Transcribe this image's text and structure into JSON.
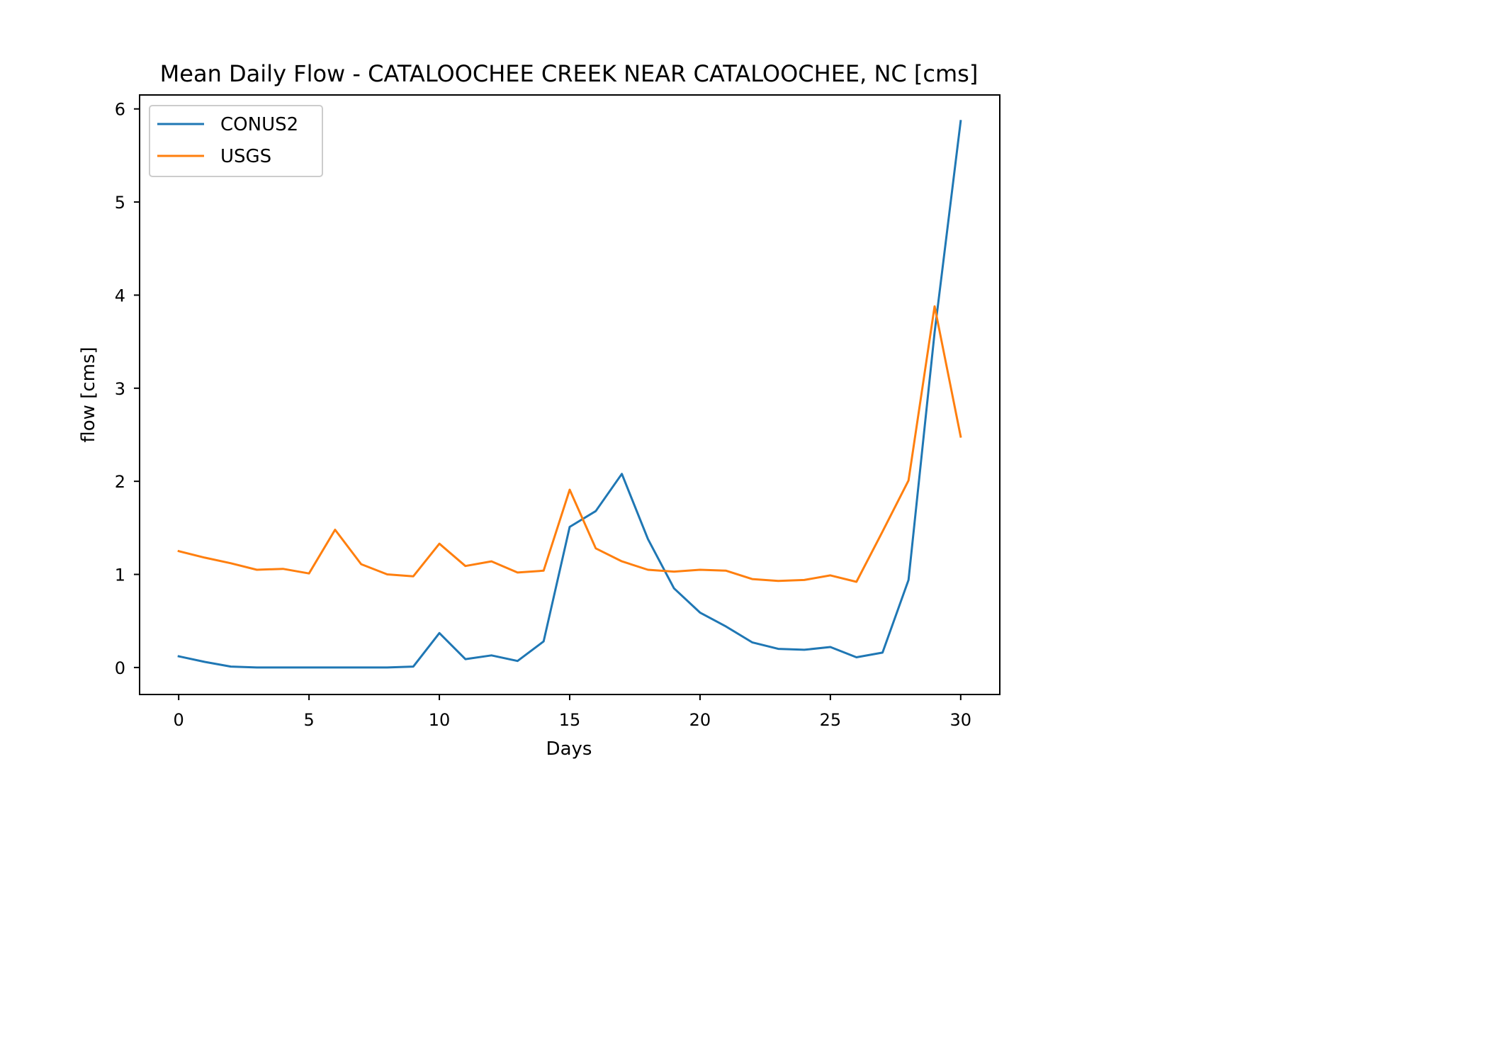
{
  "chart_data": {
    "type": "line",
    "title": "Mean Daily Flow - CATALOOCHEE CREEK NEAR CATALOOCHEE, NC [cms]",
    "xlabel": "Days",
    "ylabel": "flow [cms]",
    "xlim": [
      -1.5,
      31.5
    ],
    "ylim": [
      -0.29,
      6.15
    ],
    "xticks": [
      0,
      5,
      10,
      15,
      20,
      25,
      30
    ],
    "yticks": [
      0,
      1,
      2,
      3,
      4,
      5,
      6
    ],
    "grid": false,
    "legend_position": "upper-left",
    "x": [
      0,
      1,
      2,
      3,
      4,
      5,
      6,
      7,
      8,
      9,
      10,
      11,
      12,
      13,
      14,
      15,
      16,
      17,
      18,
      19,
      20,
      21,
      22,
      23,
      24,
      25,
      26,
      27,
      28,
      29,
      30
    ],
    "series": [
      {
        "name": "CONUS2",
        "color": "#1f77b4",
        "values": [
          0.12,
          0.06,
          0.01,
          0.0,
          0.0,
          0.0,
          0.0,
          0.0,
          0.0,
          0.01,
          0.37,
          0.09,
          0.13,
          0.07,
          0.28,
          1.51,
          1.68,
          2.08,
          1.38,
          0.85,
          0.59,
          0.44,
          0.27,
          0.2,
          0.19,
          0.22,
          0.11,
          0.16,
          0.94,
          3.6,
          5.87
        ]
      },
      {
        "name": "USGS",
        "color": "#ff7f0e",
        "values": [
          1.25,
          1.18,
          1.12,
          1.05,
          1.06,
          1.01,
          1.48,
          1.11,
          1.0,
          0.98,
          1.33,
          1.09,
          1.14,
          1.02,
          1.04,
          1.91,
          1.28,
          1.14,
          1.05,
          1.03,
          1.05,
          1.04,
          0.95,
          0.93,
          0.94,
          0.99,
          0.92,
          1.46,
          2.01,
          3.88,
          2.48
        ]
      }
    ]
  }
}
